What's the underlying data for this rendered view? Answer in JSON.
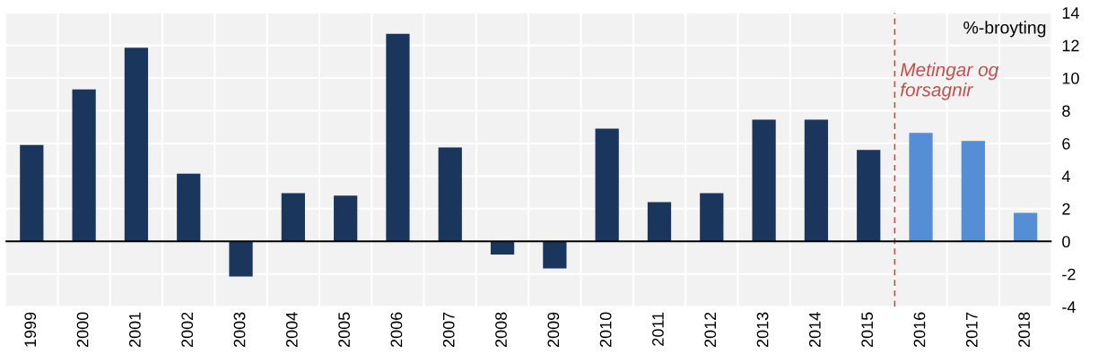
{
  "chart_data": {
    "type": "bar",
    "ylabel": "%-broyting",
    "categories": [
      "1999",
      "2000",
      "2001",
      "2002",
      "2003",
      "2004",
      "2005",
      "2006",
      "2007",
      "2008",
      "2009",
      "2010",
      "2011",
      "2012",
      "2013",
      "2014",
      "2015",
      "2016",
      "2017",
      "2018"
    ],
    "values": [
      5.9,
      9.3,
      11.85,
      4.15,
      -2.15,
      2.95,
      2.8,
      12.7,
      5.75,
      -0.8,
      -1.65,
      6.9,
      2.4,
      2.95,
      7.45,
      7.45,
      5.6,
      6.65,
      6.15,
      1.75
    ],
    "colors": [
      "#1b365d",
      "#1b365d",
      "#1b365d",
      "#1b365d",
      "#1b365d",
      "#1b365d",
      "#1b365d",
      "#1b365d",
      "#1b365d",
      "#1b365d",
      "#1b365d",
      "#1b365d",
      "#1b365d",
      "#1b365d",
      "#1b365d",
      "#1b365d",
      "#1b365d",
      "#558ed5",
      "#558ed5",
      "#558ed5"
    ],
    "ylim": [
      -4,
      14
    ],
    "yticks": [
      -4,
      -2,
      0,
      2,
      4,
      6,
      8,
      10,
      12,
      14
    ],
    "grid": true,
    "ref_lines": [
      {
        "axis": "x",
        "value": "2016",
        "label": "Metingar og\nforsagnir",
        "color": "#c0504d",
        "line_style": "dashed"
      },
      {
        "axis": "y",
        "value": 0,
        "color": "#000000",
        "line_style": "solid"
      }
    ]
  }
}
